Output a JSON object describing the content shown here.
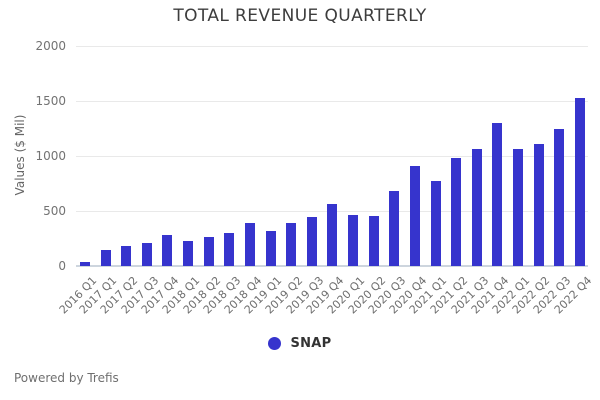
{
  "title": "TOTAL REVENUE QUARTERLY",
  "footer": {
    "text": "Powered by Trefis"
  },
  "legend": {
    "items": [
      {
        "label": "SNAP",
        "color": "#3634cd"
      }
    ]
  },
  "chart_data": {
    "type": "bar",
    "title": "TOTAL REVENUE QUARTERLY",
    "xlabel": "",
    "ylabel": "Values ($ Mil)",
    "ylim": [
      0,
      2000
    ],
    "yticks": [
      0,
      500,
      1000,
      1500,
      2000
    ],
    "grid": true,
    "legend_position": "bottom",
    "bar_color": "#3634cd",
    "categories": [
      "2016 Q1",
      "2017 Q1",
      "2017 Q2",
      "2017 Q3",
      "2017 Q4",
      "2018 Q1",
      "2018 Q2",
      "2018 Q3",
      "2018 Q4",
      "2019 Q1",
      "2019 Q2",
      "2019 Q3",
      "2019 Q4",
      "2020 Q1",
      "2020 Q2",
      "2020 Q3",
      "2020 Q4",
      "2021 Q1",
      "2021 Q2",
      "2021 Q3",
      "2021 Q4",
      "2022 Q1",
      "2022 Q2",
      "2022 Q3",
      "2022 Q4"
    ],
    "series": [
      {
        "name": "SNAP",
        "values": [
          39,
          150,
          182,
          208,
          286,
          231,
          262,
          298,
          390,
          320,
          388,
          446,
          560,
          463,
          454,
          679,
          911,
          770,
          982,
          1067,
          1298,
          1063,
          1111,
          1250,
          1530
        ]
      }
    ]
  }
}
